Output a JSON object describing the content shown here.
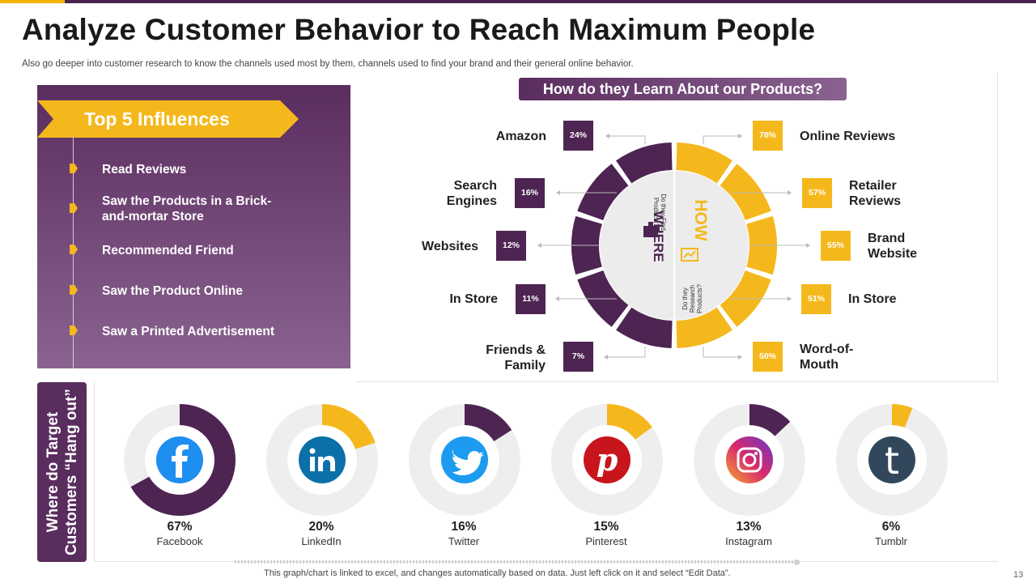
{
  "title": "Analyze Customer Behavior to Reach Maximum People",
  "subtitle": "Also go deeper into customer research to know the channels used most by them, channels used to find your brand and their general online behavior.",
  "influences": {
    "heading": "Top 5 Influences",
    "items": [
      "Read Reviews",
      "Saw the Products in a Brick-and-mortar Store",
      "Recommended Friend",
      "Saw the Product Online",
      "Saw a Printed Advertisement"
    ]
  },
  "learn": {
    "header": "How do they Learn About our Products?",
    "where_word": "WHERE",
    "where_caption": "Do they Find Products?",
    "how_word": "HOW",
    "how_caption": "Do they Research Products?"
  },
  "colors": {
    "purple": "#4e2452",
    "yellow": "#f5b81c",
    "gray": "#eeeeee",
    "accent": "#f5b400"
  },
  "chart_data": [
    {
      "type": "bar",
      "title": "Where do they Find Products?",
      "categories": [
        "Amazon",
        "Search Engines",
        "Websites",
        "In Store",
        "Friends & Family"
      ],
      "values": [
        24,
        16,
        12,
        11,
        7
      ],
      "value_labels": [
        "24%",
        "16%",
        "12%",
        "11%",
        "7%"
      ],
      "unit": "%"
    },
    {
      "type": "bar",
      "title": "How do they Research Products?",
      "categories": [
        "Online Reviews",
        "Retailer Reviews",
        "Brand Website",
        "In Store",
        "Word-of-Mouth"
      ],
      "values": [
        78,
        57,
        55,
        51,
        50
      ],
      "value_labels": [
        "78%",
        "57%",
        "55%",
        "51%",
        "50%"
      ],
      "unit": "%"
    },
    {
      "type": "pie",
      "title": "Where do Target Customers “Hang out”",
      "categories": [
        "Facebook",
        "LinkedIn",
        "Twitter",
        "Pinterest",
        "Instagram",
        "Tumblr"
      ],
      "values": [
        67,
        20,
        16,
        15,
        13,
        6
      ],
      "value_labels": [
        "67%",
        "20%",
        "16%",
        "15%",
        "13%",
        "6%"
      ],
      "icons": [
        "facebook-icon",
        "linkedin-icon",
        "twitter-icon",
        "pinterest-icon",
        "instagram-icon",
        "tumblr-icon"
      ],
      "slice_colors": [
        "#4e2452",
        "#f5b81c",
        "#4e2452",
        "#f5b81c",
        "#4e2452",
        "#f5b81c"
      ],
      "unit": "%"
    }
  ],
  "hangout": {
    "tab_line1": "Where do Target",
    "tab_line2": "Customers “Hang out”"
  },
  "footer": {
    "note": "This graph/chart is linked to excel, and changes automatically based on data. Just left click on it and select “Edit Data”.",
    "page_number": "13"
  }
}
